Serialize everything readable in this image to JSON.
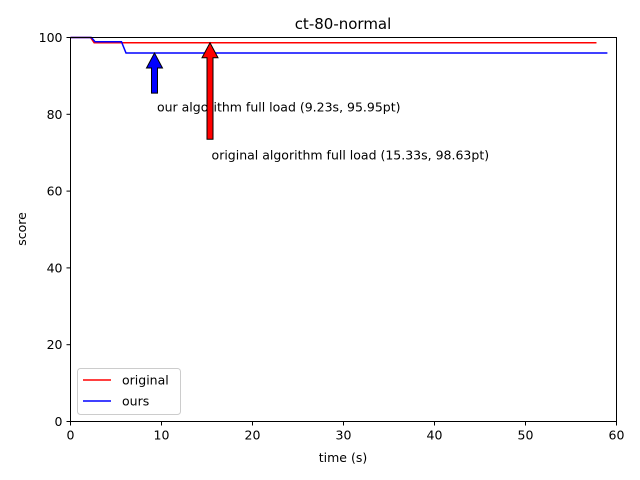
{
  "chart_data": {
    "type": "line",
    "title": "ct-80-normal",
    "xlabel": "time (s)",
    "ylabel": "score",
    "xlim": [
      0,
      60
    ],
    "ylim": [
      0,
      100
    ],
    "xticks": [
      0,
      10,
      20,
      30,
      40,
      50,
      60
    ],
    "yticks": [
      0,
      20,
      40,
      60,
      80,
      100
    ],
    "grid": false,
    "legend_position": "lower-left",
    "series": [
      {
        "name": "original",
        "color": "#ff0000",
        "x": [
          0,
          2.2,
          2.6,
          57.8
        ],
        "y": [
          100,
          100,
          98.63,
          98.63
        ]
      },
      {
        "name": "ours",
        "color": "#0000ff",
        "x": [
          0,
          2.3,
          2.7,
          5.6,
          6.1,
          59.0
        ],
        "y": [
          100,
          100,
          98.9,
          98.9,
          95.95,
          95.95
        ]
      }
    ],
    "annotations": [
      {
        "text": "our algorithm full load (9.23s, 95.95pt)",
        "x": 9.23,
        "y": 95.95,
        "color": "#0000ff"
      },
      {
        "text": "original algorithm full load (15.33s, 98.63pt)",
        "x": 15.33,
        "y": 98.63,
        "color": "#ff0000"
      }
    ]
  }
}
